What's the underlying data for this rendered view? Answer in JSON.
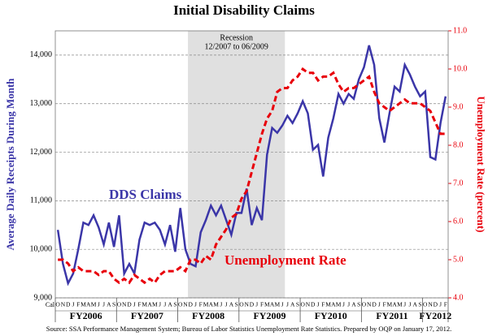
{
  "chart_data": {
    "type": "line",
    "title": "Initial Disability Claims",
    "ylabel": "Average Daily Receipts During Month",
    "y2label": "Unemployment  Rate (percent)",
    "source": "Source:  SSA Performance Management System; Bureau of Labor Statistics Unemployment Rate Statistics. Prepared by OQP on January 17, 2012.",
    "x_prefix": "Cal",
    "categories": [
      "O",
      "N",
      "D",
      "J",
      "F",
      "M",
      "A",
      "M",
      "J",
      "J",
      "A",
      "S",
      "O",
      "N",
      "D",
      "J",
      "F",
      "M",
      "A",
      "M",
      "J",
      "J",
      "A",
      "S",
      "O",
      "N",
      "D",
      "J",
      "F",
      "M",
      "A",
      "M",
      "J",
      "J",
      "A",
      "S",
      "O",
      "N",
      "D",
      "J",
      "F",
      "M",
      "A",
      "M",
      "J",
      "J",
      "A",
      "S",
      "O",
      "N",
      "D",
      "J",
      "F",
      "M",
      "A",
      "M",
      "J",
      "J",
      "A",
      "S",
      "O",
      "N",
      "D",
      "J",
      "F",
      "M",
      "A",
      "M",
      "J",
      "J",
      "A",
      "S",
      "O",
      "N",
      "D",
      "J",
      "F"
    ],
    "fiscal_years": [
      "FY2006",
      "FY2007",
      "FY2008",
      "FY2009",
      "FY2010",
      "FY2011",
      "FY2012"
    ],
    "recession": {
      "label": "Recession",
      "sublabel": "12/2007  to 06/2009",
      "start": 26,
      "end": 44
    },
    "ylim": [
      9000,
      14500
    ],
    "yticks": [
      {
        "value": 9000,
        "label": "9,000"
      },
      {
        "value": 10000,
        "label": "10,000"
      },
      {
        "value": 11000,
        "label": "11,000"
      },
      {
        "value": 12000,
        "label": "12,000"
      },
      {
        "value": 13000,
        "label": "13,000"
      },
      {
        "value": 14000,
        "label": "14,000"
      }
    ],
    "y2lim": [
      4,
      11
    ],
    "y2ticks": [
      {
        "value": 4,
        "label": "4.0"
      },
      {
        "value": 5,
        "label": "5.0"
      },
      {
        "value": 6,
        "label": "6.0"
      },
      {
        "value": 7,
        "label": "7.0"
      },
      {
        "value": 8,
        "label": "8.0"
      },
      {
        "value": 9,
        "label": "9.0"
      },
      {
        "value": 10,
        "label": "10.0"
      },
      {
        "value": 11,
        "label": "11.0"
      }
    ],
    "grid": true,
    "series": [
      {
        "name": "DDS Claims",
        "color": "#3b36a8",
        "dash": false,
        "values": [
          10400,
          9700,
          9300,
          9500,
          10000,
          10550,
          10500,
          10700,
          10450,
          10100,
          10550,
          10050,
          10700,
          9500,
          9700,
          9500,
          10200,
          10550,
          10500,
          10550,
          10400,
          10100,
          10500,
          9950,
          10850,
          10000,
          9700,
          9650,
          10350,
          10600,
          10900,
          10700,
          10900,
          10600,
          10300,
          10750,
          10750,
          11250,
          10500,
          10850,
          10600,
          11950,
          12500,
          12400,
          12550,
          12750,
          12600,
          12800,
          13050,
          12800,
          12050,
          12150,
          11500,
          12300,
          12700,
          13200,
          13000,
          13200,
          13100,
          13500,
          13750,
          14200,
          13800,
          12700,
          12200,
          12800,
          13350,
          13250,
          13800,
          13600,
          13350,
          13150,
          13250,
          11900,
          11850,
          12600,
          13150
        ]
      },
      {
        "name": "Unemployment Rate",
        "color": "#e8000b",
        "dash": true,
        "axis": "y2",
        "values": [
          5.0,
          5.0,
          4.9,
          4.7,
          4.8,
          4.7,
          4.7,
          4.7,
          4.6,
          4.7,
          4.7,
          4.5,
          4.4,
          4.5,
          4.4,
          4.6,
          4.5,
          4.4,
          4.5,
          4.4,
          4.6,
          4.7,
          4.7,
          4.7,
          4.8,
          4.7,
          5.0,
          5.0,
          4.9,
          5.1,
          5.0,
          5.4,
          5.6,
          5.8,
          6.1,
          6.2,
          6.6,
          6.8,
          7.3,
          7.8,
          8.3,
          8.7,
          8.9,
          9.4,
          9.5,
          9.5,
          9.7,
          9.8,
          10.0,
          9.9,
          9.9,
          9.7,
          9.8,
          9.8,
          9.9,
          9.6,
          9.4,
          9.5,
          9.5,
          9.6,
          9.7,
          9.8,
          9.4,
          9.1,
          9.0,
          8.9,
          9.0,
          9.1,
          9.2,
          9.1,
          9.1,
          9.1,
          9.0,
          8.9,
          8.6,
          8.3,
          8.3
        ]
      }
    ]
  }
}
